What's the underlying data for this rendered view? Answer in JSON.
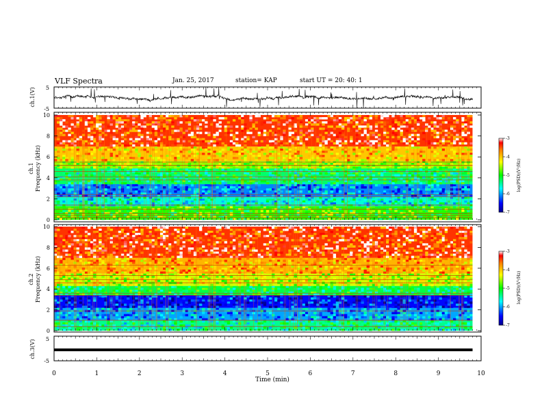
{
  "header": {
    "title": "VLF Spectra",
    "date": "Jan. 25, 2017",
    "station": "station= KAP",
    "start_ut": "start UT =   20: 40: 1"
  },
  "chart_data": [
    {
      "type": "line",
      "panel": "ch1-waveform",
      "ylabel": "ch.1(V)",
      "ylim": [
        -5,
        5
      ],
      "yticks": [
        "5",
        "-5"
      ],
      "xlim": [
        0,
        10
      ],
      "x_end": 9.8,
      "baseline": 0,
      "amplitude_note": "dense noise trace around 0 V with spikes toward +/-5 V"
    },
    {
      "type": "heatmap",
      "panel": "ch1-spectrogram",
      "ylabel": "Frequency (kHz)",
      "channel_label": "ch.1",
      "ylim": [
        0,
        10
      ],
      "yticks": [
        "0",
        "2",
        "4",
        "6",
        "8",
        "10"
      ],
      "xlim": [
        0,
        10
      ],
      "x_end": 9.8,
      "colorbar": {
        "label": "log(PSD)(V²/Hz)",
        "range": [
          -7,
          -3
        ],
        "ticks": [
          "-3",
          "-4",
          "-5",
          "-6",
          "-7"
        ]
      },
      "bands": [
        {
          "from": 0,
          "to": 1.3,
          "level": -4.9
        },
        {
          "from": 1.3,
          "to": 2.2,
          "level": -5.6
        },
        {
          "from": 2.2,
          "to": 3.4,
          "level": -6.1
        },
        {
          "from": 3.4,
          "to": 4.9,
          "level": -5.3
        },
        {
          "from": 4.9,
          "to": 5.6,
          "level": -4.6
        },
        {
          "from": 5.6,
          "to": 7.0,
          "level": -4.0
        },
        {
          "from": 7.0,
          "to": 10,
          "level": -3.4
        }
      ],
      "lines_khz": [
        0.2,
        0.4,
        0.6,
        1.0,
        1.4,
        2.2,
        2.4,
        3.8,
        4.1,
        4.6,
        5.2,
        5.5
      ]
    },
    {
      "type": "heatmap",
      "panel": "ch2-spectrogram",
      "ylabel": "Frequency (kHz)",
      "channel_label": "ch.2",
      "ylim": [
        0,
        10
      ],
      "yticks": [
        "0",
        "2",
        "4",
        "6",
        "8",
        "10"
      ],
      "xlim": [
        0,
        10
      ],
      "x_end": 9.8,
      "colorbar": {
        "label": "log(PSD)(V²/Hz)",
        "range": [
          -7,
          -3
        ],
        "ticks": [
          "-3",
          "-4",
          "-5",
          "-6",
          "-7"
        ]
      },
      "bands": [
        {
          "from": 0,
          "to": 1.0,
          "level": -5.4
        },
        {
          "from": 1.0,
          "to": 2.2,
          "level": -6.0
        },
        {
          "from": 2.2,
          "to": 3.4,
          "level": -6.5
        },
        {
          "from": 3.4,
          "to": 4.3,
          "level": -5.2
        },
        {
          "from": 4.3,
          "to": 5.5,
          "level": -4.4
        },
        {
          "from": 5.5,
          "to": 7.0,
          "level": -3.9
        },
        {
          "from": 7.0,
          "to": 10,
          "level": -3.4
        }
      ],
      "lines_khz": [
        0.4,
        1.0,
        1.9,
        3.4,
        3.6,
        4.6,
        4.9,
        5.3,
        6.3
      ]
    },
    {
      "type": "line",
      "panel": "ch3-waveform",
      "ylabel": "ch.3(V)",
      "ylim": [
        -5,
        5
      ],
      "yticks": [
        "5",
        "-5"
      ],
      "xlim": [
        0,
        10
      ],
      "x_end": 9.8,
      "baseline": 0,
      "amplitude_note": "thick flat trace near 0 V"
    }
  ],
  "x_axis": {
    "label": "Time (min)",
    "ticks": [
      "0",
      "1",
      "2",
      "3",
      "4",
      "5",
      "6",
      "7",
      "8",
      "9",
      "10"
    ]
  }
}
